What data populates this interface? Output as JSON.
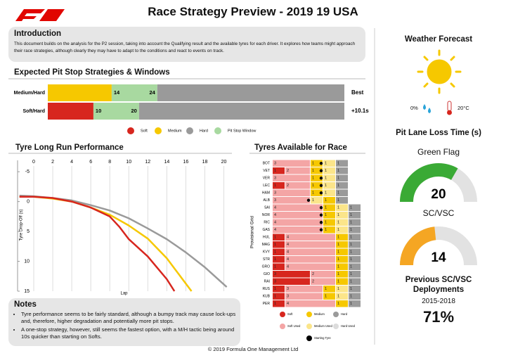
{
  "header": {
    "title": "Race Strategy Preview - 2019 19 USA"
  },
  "introduction": {
    "title": "Introduction",
    "text": "This document builds on the analysis for the P2 session, taking into account the Qualifying result and the available tyres for each driver. It explores how teams might approach their race strategies, although clearly they may have to adapt to the conditions and react to events on track."
  },
  "chart_data": [
    {
      "type": "strategy",
      "title": "Expected Pit Stop Strategies & Windows",
      "xlim": [
        0,
        65
      ],
      "rows": [
        {
          "name": "Medium/Hard",
          "first_tyre": "Medium",
          "second_tyre": "Hard",
          "window": [
            14,
            24
          ],
          "result": "Best"
        },
        {
          "name": "Soft/Hard",
          "first_tyre": "Soft",
          "second_tyre": "Hard",
          "window": [
            10,
            20
          ],
          "result": "+10.1s"
        }
      ],
      "legend": [
        {
          "name": "Soft",
          "color": "#d7261e"
        },
        {
          "name": "Medium",
          "color": "#f6c800"
        },
        {
          "name": "Hard",
          "color": "#9a9a9a"
        },
        {
          "name": "Pit Stop Window",
          "color": "#a8d9a0"
        }
      ]
    },
    {
      "type": "line",
      "title": "Tyre Long Run Performance",
      "x_label": "Lap",
      "y_label": "Tyre Drop-Off (s)",
      "xlim": [
        -1.7,
        20.7
      ],
      "ylim": [
        -6.9,
        15
      ],
      "y_inverted": true,
      "xticks": [
        0,
        2,
        4,
        6,
        8,
        10,
        12,
        14,
        16,
        18,
        20
      ],
      "yticks": [
        -5,
        0,
        5,
        10,
        15
      ],
      "grid": true,
      "series": [
        {
          "color": "#9a9a9a",
          "x": [
            -1.5,
            0,
            2,
            4,
            6,
            8,
            10,
            12,
            14,
            16,
            18,
            20.3
          ],
          "values": [
            -1,
            -0.9,
            -0.6,
            -0.2,
            0.6,
            1.5,
            2.8,
            4.5,
            6.3,
            8.5,
            11,
            14.3
          ]
        },
        {
          "color": "#f6c800",
          "x": [
            -1.5,
            0,
            2,
            4,
            6,
            8,
            10,
            12,
            14,
            16.6
          ],
          "values": [
            -0.8,
            -0.8,
            -0.5,
            0,
            1,
            2.2,
            4,
            6.2,
            9.5,
            15
          ]
        },
        {
          "color": "#d7261e",
          "x": [
            -1.5,
            0,
            2,
            4,
            6,
            8,
            9,
            10,
            12,
            14,
            14.8
          ],
          "values": [
            -0.8,
            -0.8,
            -0.6,
            0,
            1,
            2.5,
            4.2,
            6.3,
            9.2,
            13,
            15
          ]
        }
      ]
    },
    {
      "type": "tyre_grid",
      "title": "Tyres Available for Race",
      "y_label": "Provisional Grid",
      "legend": [
        {
          "name": "Soft",
          "color": "#d7261e"
        },
        {
          "name": "Medium",
          "color": "#f6c800"
        },
        {
          "name": "Hard",
          "color": "#9a9a9a"
        },
        {
          "name": "Soft Used",
          "color": "#f4a5a5"
        },
        {
          "name": "Medium Used",
          "color": "#fbe58a"
        },
        {
          "name": "Hard Used",
          "color": "#dcdcdc"
        },
        {
          "name": "Starting Tyre",
          "color": "#000000"
        }
      ],
      "drivers": [
        {
          "name": "BOT",
          "sets": [
            {
              "tyre": "Soft Used",
              "count": 3
            },
            {
              "tyre": "Medium",
              "count": 1
            },
            {
              "tyre": "Medium Used",
              "count": 1,
              "starting": true
            },
            {
              "tyre": "Hard",
              "count": 1
            }
          ]
        },
        {
          "name": "VET",
          "sets": [
            {
              "tyre": "Soft",
              "count": 1
            },
            {
              "tyre": "Soft Used",
              "count": 2
            },
            {
              "tyre": "Medium",
              "count": 1
            },
            {
              "tyre": "Medium Used",
              "count": 1,
              "starting": true
            },
            {
              "tyre": "Hard",
              "count": 1
            }
          ]
        },
        {
          "name": "VER",
          "sets": [
            {
              "tyre": "Soft Used",
              "count": 3
            },
            {
              "tyre": "Medium",
              "count": 1
            },
            {
              "tyre": "Medium Used",
              "count": 1,
              "starting": true
            },
            {
              "tyre": "Hard",
              "count": 1
            }
          ]
        },
        {
          "name": "LEC",
          "sets": [
            {
              "tyre": "Soft",
              "count": 1
            },
            {
              "tyre": "Soft Used",
              "count": 2
            },
            {
              "tyre": "Medium",
              "count": 1
            },
            {
              "tyre": "Medium Used",
              "count": 1,
              "starting": true
            },
            {
              "tyre": "Hard",
              "count": 1
            }
          ]
        },
        {
          "name": "HAM",
          "sets": [
            {
              "tyre": "Soft Used",
              "count": 3
            },
            {
              "tyre": "Medium",
              "count": 1
            },
            {
              "tyre": "Medium Used",
              "count": 1,
              "starting": true
            },
            {
              "tyre": "Hard",
              "count": 1
            }
          ]
        },
        {
          "name": "ALB",
          "sets": [
            {
              "tyre": "Soft Used",
              "count": 3
            },
            {
              "tyre": "Medium Used",
              "count": 1,
              "starting": true
            },
            {
              "tyre": "Medium",
              "count": 1
            },
            {
              "tyre": "Hard",
              "count": 1
            }
          ]
        },
        {
          "name": "SAI",
          "sets": [
            {
              "tyre": "Soft Used",
              "count": 4
            },
            {
              "tyre": "Medium",
              "count": 1,
              "starting": true
            },
            {
              "tyre": "Medium Used",
              "count": 1
            },
            {
              "tyre": "Hard",
              "count": 1
            }
          ]
        },
        {
          "name": "NOR",
          "sets": [
            {
              "tyre": "Soft Used",
              "count": 4
            },
            {
              "tyre": "Medium",
              "count": 1,
              "starting": true
            },
            {
              "tyre": "Medium Used",
              "count": 1
            },
            {
              "tyre": "Hard",
              "count": 1
            }
          ]
        },
        {
          "name": "RIC",
          "sets": [
            {
              "tyre": "Soft Used",
              "count": 4
            },
            {
              "tyre": "Medium",
              "count": 1,
              "starting": true
            },
            {
              "tyre": "Medium Used",
              "count": 1
            },
            {
              "tyre": "Hard",
              "count": 1
            }
          ]
        },
        {
          "name": "GAS",
          "sets": [
            {
              "tyre": "Soft Used",
              "count": 4
            },
            {
              "tyre": "Medium",
              "count": 1,
              "starting": true
            },
            {
              "tyre": "Medium Used",
              "count": 1
            },
            {
              "tyre": "Hard",
              "count": 1
            }
          ]
        },
        {
          "name": "HUL",
          "sets": [
            {
              "tyre": "Soft",
              "count": 1
            },
            {
              "tyre": "Soft Used",
              "count": 4
            },
            {
              "tyre": "Medium",
              "count": 1
            },
            {
              "tyre": "Hard",
              "count": 1
            }
          ]
        },
        {
          "name": "MAG",
          "sets": [
            {
              "tyre": "Soft",
              "count": 1
            },
            {
              "tyre": "Soft Used",
              "count": 4
            },
            {
              "tyre": "Medium",
              "count": 1
            },
            {
              "tyre": "Hard",
              "count": 1
            }
          ]
        },
        {
          "name": "KVY",
          "sets": [
            {
              "tyre": "Soft",
              "count": 1
            },
            {
              "tyre": "Soft Used",
              "count": 4
            },
            {
              "tyre": "Medium",
              "count": 1
            },
            {
              "tyre": "Hard",
              "count": 1
            }
          ]
        },
        {
          "name": "STR",
          "sets": [
            {
              "tyre": "Soft",
              "count": 1
            },
            {
              "tyre": "Soft Used",
              "count": 4
            },
            {
              "tyre": "Medium",
              "count": 1
            },
            {
              "tyre": "Hard",
              "count": 1
            }
          ]
        },
        {
          "name": "GRO",
          "sets": [
            {
              "tyre": "Soft",
              "count": 1
            },
            {
              "tyre": "Soft Used",
              "count": 4
            },
            {
              "tyre": "Medium",
              "count": 1
            },
            {
              "tyre": "Hard",
              "count": 1
            }
          ]
        },
        {
          "name": "GIO",
          "sets": [
            {
              "tyre": "Soft",
              "count": 3
            },
            {
              "tyre": "Soft Used",
              "count": 2
            },
            {
              "tyre": "Medium",
              "count": 1
            },
            {
              "tyre": "Hard",
              "count": 1
            }
          ]
        },
        {
          "name": "RAI",
          "sets": [
            {
              "tyre": "Soft",
              "count": 3
            },
            {
              "tyre": "Soft Used",
              "count": 2
            },
            {
              "tyre": "Medium",
              "count": 1
            },
            {
              "tyre": "Hard",
              "count": 1
            }
          ]
        },
        {
          "name": "RUS",
          "sets": [
            {
              "tyre": "Soft",
              "count": 1
            },
            {
              "tyre": "Soft Used",
              "count": 3
            },
            {
              "tyre": "Medium",
              "count": 1
            },
            {
              "tyre": "Medium Used",
              "count": 1
            },
            {
              "tyre": "Hard",
              "count": 1
            }
          ]
        },
        {
          "name": "KUB",
          "sets": [
            {
              "tyre": "Soft",
              "count": 1
            },
            {
              "tyre": "Soft Used",
              "count": 3
            },
            {
              "tyre": "Medium",
              "count": 1
            },
            {
              "tyre": "Medium Used",
              "count": 1
            },
            {
              "tyre": "Hard",
              "count": 1
            }
          ]
        },
        {
          "name": "PER",
          "sets": [
            {
              "tyre": "Soft",
              "count": 1
            },
            {
              "tyre": "Soft Used",
              "count": 4
            },
            {
              "tyre": "Medium",
              "count": 1
            },
            {
              "tyre": "Hard",
              "count": 1
            }
          ]
        }
      ]
    }
  ],
  "weather": {
    "title": "Weather Forecast",
    "rain": "0%",
    "temperature": "20°C"
  },
  "pit_lane": {
    "title": "Pit Lane Loss Time (s)",
    "range": [
      0,
      30
    ],
    "gauges": [
      {
        "label": "Green Flag",
        "value": 20,
        "color": "#3aaa35"
      },
      {
        "label": "SC/VSC",
        "value": 14,
        "color": "#f5a623"
      }
    ]
  },
  "sc_history": {
    "title": "Previous SC/VSC Deployments",
    "period": "2015-2018",
    "rate": "71%"
  },
  "notes": {
    "title": "Notes",
    "items": [
      "Tyre performance seems to be fairly standard, although a bumpy track may cause lock-ups and, therefore, higher degradation and potentially more pit stops.",
      "A one-stop strategy, however, still seems the fastest option, with a M/H tactic being around 10s quicker than starting on Softs."
    ]
  },
  "footer": "© 2019 Formula One Management Ltd"
}
